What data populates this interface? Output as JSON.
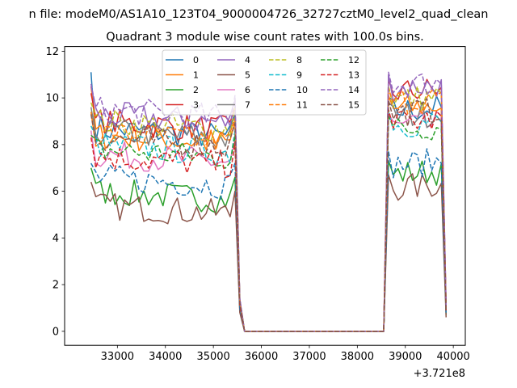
{
  "chart_data": {
    "type": "line",
    "suptitle": "n file: modeM0/AS1A10_123T04_9000004726_32727cztM0_level2_quad_clean",
    "title": "Quadrant 3 module wise count rates with 100.0s bins.",
    "xlabel": "",
    "ylabel": "",
    "x_offset_label": "+3.721e8",
    "xlim": [
      31900,
      40250
    ],
    "ylim": [
      -0.6,
      12.2
    ],
    "x_ticks": [
      33000,
      34000,
      35000,
      36000,
      37000,
      38000,
      39000,
      40000
    ],
    "x_tick_labels": [
      "33000",
      "34000",
      "35000",
      "36000",
      "37000",
      "38000",
      "39000",
      "40000"
    ],
    "y_ticks": [
      0,
      2,
      4,
      6,
      8,
      10,
      12
    ],
    "y_tick_labels": [
      "0",
      "2",
      "4",
      "6",
      "8",
      "10",
      "12"
    ],
    "grid": false,
    "legend_position": "top-center",
    "x_start": 32450,
    "x_step": 100,
    "count": 75,
    "gap_start_index": 32,
    "gap_end_index": 61,
    "series": [
      {
        "name": "0",
        "color": "#1f77b4",
        "dashed": false,
        "first": 11.1,
        "mean1": 8.7,
        "mean2": 9.4,
        "last": 1.0
      },
      {
        "name": "1",
        "color": "#ff7f0e",
        "dashed": false,
        "first": 10.5,
        "mean1": 8.4,
        "mean2": 9.5,
        "last": 0.9
      },
      {
        "name": "2",
        "color": "#2ca02c",
        "dashed": false,
        "first": 7.0,
        "mean1": 6.0,
        "mean2": 6.7,
        "last": 0.7
      },
      {
        "name": "3",
        "color": "#d62728",
        "dashed": false,
        "first": 10.2,
        "mean1": 9.0,
        "mean2": 10.2,
        "last": 1.0
      },
      {
        "name": "4",
        "color": "#9467bd",
        "dashed": false,
        "first": 10.5,
        "mean1": 9.3,
        "mean2": 10.4,
        "last": 1.1
      },
      {
        "name": "5",
        "color": "#8c564b",
        "dashed": false,
        "first": 6.4,
        "mean1": 5.4,
        "mean2": 6.1,
        "last": 0.6
      },
      {
        "name": "6",
        "color": "#e377c2",
        "dashed": false,
        "first": 8.6,
        "mean1": 7.6,
        "mean2": 8.7,
        "last": 0.9
      },
      {
        "name": "7",
        "color": "#7f7f7f",
        "dashed": false,
        "first": 9.6,
        "mean1": 8.6,
        "mean2": 9.2,
        "last": 1.0
      },
      {
        "name": "8",
        "color": "#bcbd22",
        "dashed": true,
        "first": 9.8,
        "mean1": 9.0,
        "mean2": 9.9,
        "last": 1.0
      },
      {
        "name": "9",
        "color": "#17becf",
        "dashed": true,
        "first": 8.8,
        "mean1": 8.0,
        "mean2": 8.8,
        "last": 0.9
      },
      {
        "name": "10",
        "color": "#1f77b4",
        "dashed": true,
        "first": 7.2,
        "mean1": 6.6,
        "mean2": 7.1,
        "last": 0.8
      },
      {
        "name": "11",
        "color": "#ff7f0e",
        "dashed": true,
        "first": 9.4,
        "mean1": 8.5,
        "mean2": 9.8,
        "last": 1.0
      },
      {
        "name": "12",
        "color": "#2ca02c",
        "dashed": true,
        "first": 8.4,
        "mean1": 7.8,
        "mean2": 8.6,
        "last": 0.9
      },
      {
        "name": "13",
        "color": "#d62728",
        "dashed": true,
        "first": 8.3,
        "mean1": 7.5,
        "mean2": 8.9,
        "last": 0.9
      },
      {
        "name": "14",
        "color": "#9467bd",
        "dashed": true,
        "first": 10.6,
        "mean1": 9.5,
        "mean2": 10.5,
        "last": 1.1
      },
      {
        "name": "15",
        "color": "#8c564b",
        "dashed": true,
        "first": 9.3,
        "mean1": 8.3,
        "mean2": 9.3,
        "last": 0.9
      }
    ]
  }
}
